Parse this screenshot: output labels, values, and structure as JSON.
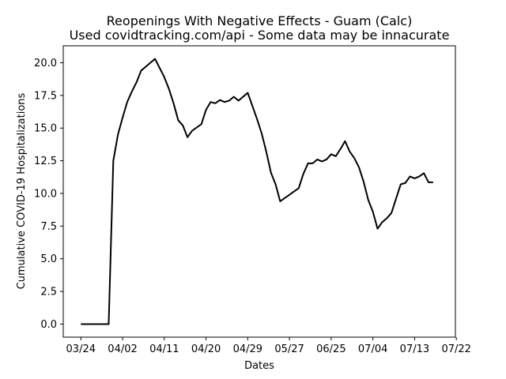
{
  "chart_data": {
    "type": "line",
    "title": "Reopenings With Negative Effects - Guam (Calc)",
    "subtitle": "Used covidtracking.com/api - Some data may be innacurate",
    "xlabel": "Dates",
    "ylabel": "Cumulative COVID-19 Hospitalizations",
    "x_tick_labels": [
      "03/24",
      "04/02",
      "04/11",
      "04/20",
      "04/29",
      "05/27",
      "06/25",
      "07/04",
      "07/13",
      "07/22"
    ],
    "y_ticks": [
      0.0,
      2.5,
      5.0,
      7.5,
      10.0,
      12.5,
      15.0,
      17.5,
      20.0
    ],
    "y_tick_labels": [
      "0.0",
      "2.5",
      "5.0",
      "7.5",
      "10.0",
      "12.5",
      "15.0",
      "17.5",
      "20.0"
    ],
    "ylim": [
      -1.0,
      21.3
    ],
    "xlim": [
      -3.8,
      80.8
    ],
    "grid": false,
    "line_color": "#000000",
    "series": [
      {
        "points": [
          [
            0,
            0.0
          ],
          [
            6,
            0.0
          ],
          [
            7,
            12.5
          ],
          [
            8,
            14.5
          ],
          [
            9,
            15.8
          ],
          [
            10,
            17.0
          ],
          [
            11,
            17.8
          ],
          [
            12,
            18.5
          ],
          [
            13,
            19.4
          ],
          [
            14,
            19.7
          ],
          [
            15,
            20.0
          ],
          [
            16,
            20.3
          ],
          [
            17,
            19.6
          ],
          [
            18,
            18.9
          ],
          [
            19,
            18.0
          ],
          [
            20,
            16.9
          ],
          [
            21,
            15.6
          ],
          [
            22,
            15.2
          ],
          [
            23,
            14.3
          ],
          [
            24,
            14.8
          ],
          [
            26,
            15.3
          ],
          [
            27,
            16.4
          ],
          [
            28,
            17.0
          ],
          [
            29,
            16.9
          ],
          [
            30,
            17.15
          ],
          [
            31,
            17.0
          ],
          [
            32,
            17.1
          ],
          [
            33,
            17.4
          ],
          [
            34,
            17.1
          ],
          [
            36,
            17.7
          ],
          [
            38,
            15.7
          ],
          [
            39,
            14.6
          ],
          [
            40,
            13.2
          ],
          [
            41,
            11.6
          ],
          [
            42,
            10.7
          ],
          [
            43,
            9.4
          ],
          [
            47,
            10.4
          ],
          [
            48,
            11.5
          ],
          [
            49,
            12.3
          ],
          [
            50,
            12.3
          ],
          [
            51,
            12.6
          ],
          [
            52,
            12.45
          ],
          [
            53,
            12.6
          ],
          [
            54,
            13.0
          ],
          [
            55,
            12.85
          ],
          [
            56,
            13.4
          ],
          [
            57,
            14.0
          ],
          [
            58,
            13.2
          ],
          [
            59,
            12.7
          ],
          [
            60,
            12.0
          ],
          [
            61,
            10.9
          ],
          [
            62,
            9.5
          ],
          [
            63,
            8.6
          ],
          [
            64,
            7.3
          ],
          [
            65,
            7.8
          ],
          [
            66,
            8.1
          ],
          [
            67,
            8.5
          ],
          [
            68,
            9.6
          ],
          [
            69,
            10.7
          ],
          [
            70,
            10.8
          ],
          [
            71,
            11.3
          ],
          [
            72,
            11.15
          ],
          [
            73,
            11.3
          ],
          [
            74,
            11.55
          ],
          [
            75,
            10.85
          ],
          [
            76,
            10.85
          ]
        ]
      }
    ]
  }
}
